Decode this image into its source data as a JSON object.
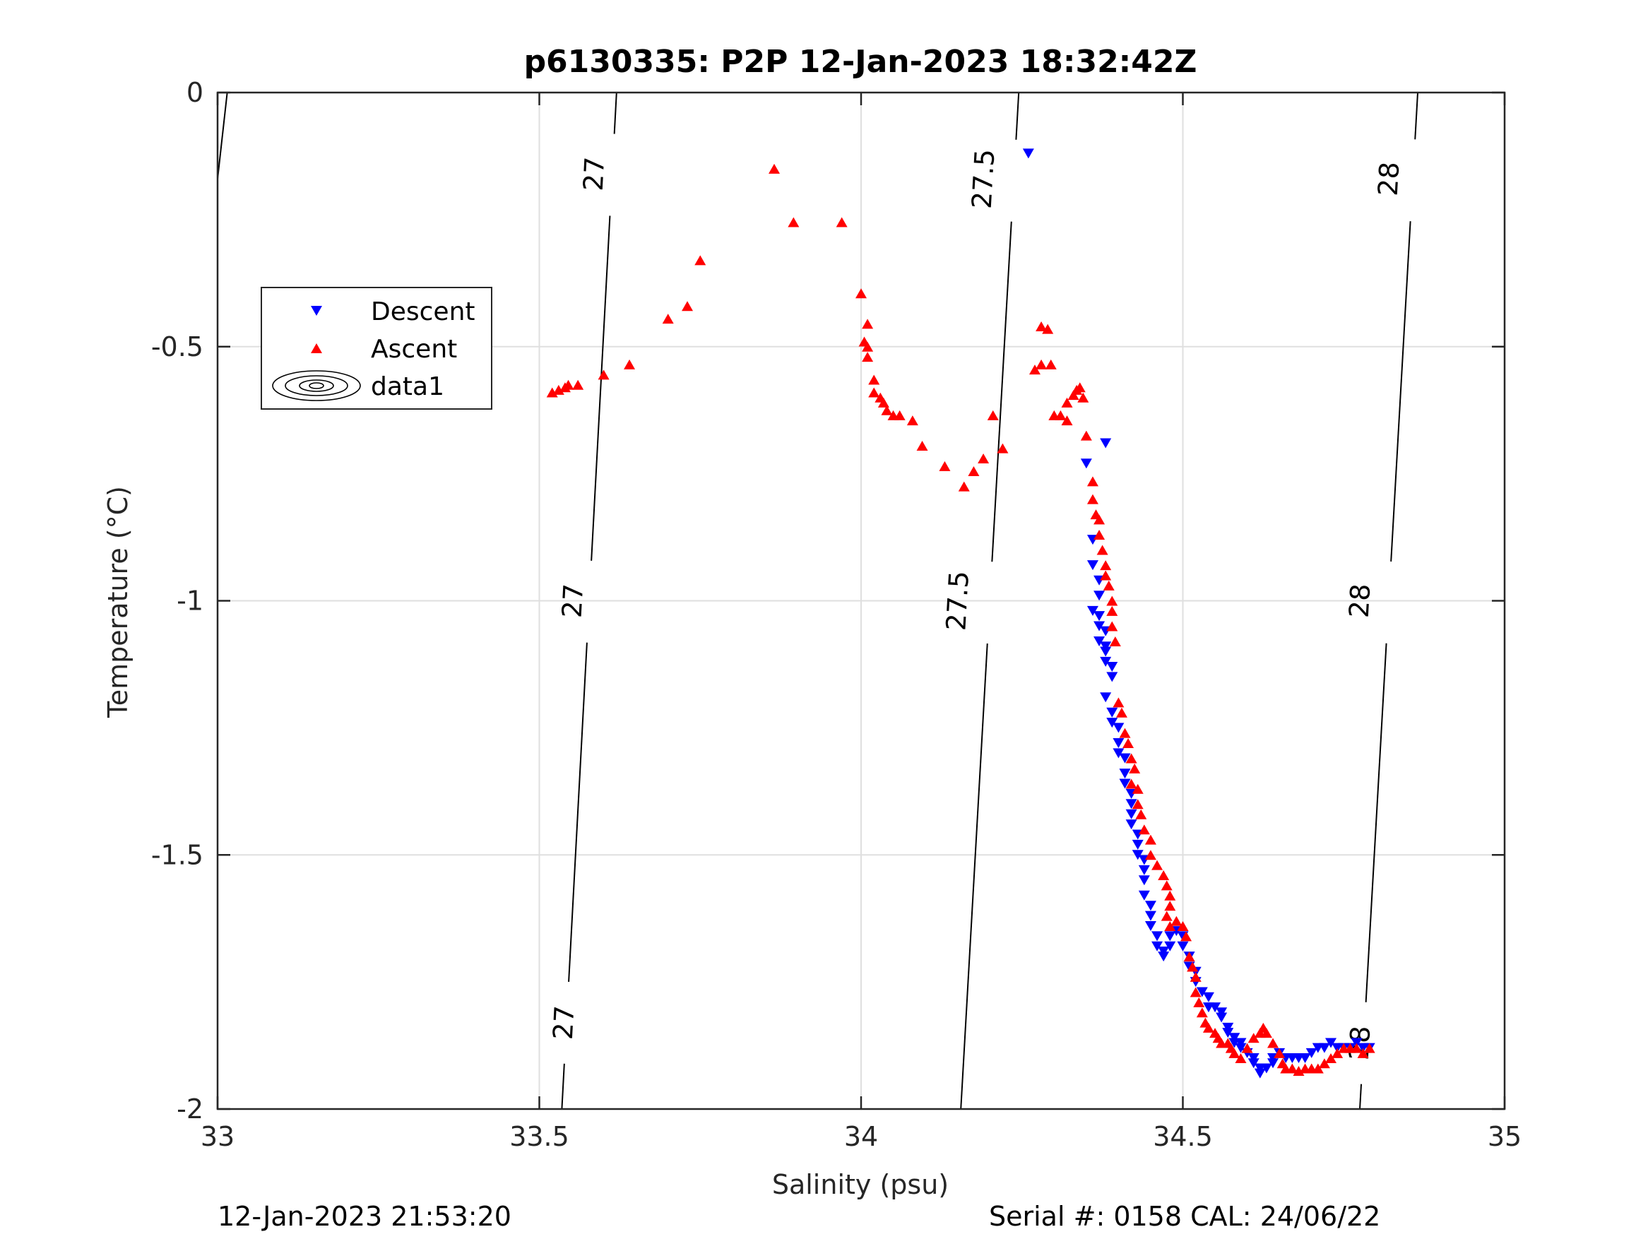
{
  "footer": {
    "left": "12-Jan-2023 21:53:20",
    "right": "Serial #: 0158  CAL: 24/06/22"
  },
  "chart_data": {
    "type": "scatter",
    "title": "p6130335: P2P 12-Jan-2023 18:32:42Z",
    "xlabel": "Salinity (psu)",
    "ylabel": "Temperature (°C)",
    "xlim": [
      33,
      35
    ],
    "ylim": [
      -2,
      0
    ],
    "xticks": [
      33,
      33.5,
      34,
      34.5,
      35
    ],
    "yticks": [
      0,
      -0.5,
      -1,
      -1.5,
      -2
    ],
    "xtick_labels": [
      "33",
      "33.5",
      "34",
      "34.5",
      "35"
    ],
    "ytick_labels": [
      "0",
      "-0.5",
      "-1",
      "-1.5",
      "-2"
    ],
    "grid": true,
    "legend_position": "upper-left",
    "legend": [
      {
        "label": "Descent",
        "marker": "triangle-down",
        "color": "#0000ff"
      },
      {
        "label": "Ascent",
        "marker": "triangle-up",
        "color": "#ff0000"
      },
      {
        "label": "data1",
        "marker": "contour",
        "color": "#000000"
      }
    ],
    "series": [
      {
        "name": "Descent",
        "color": "#0000ff",
        "marker": "triangle-down",
        "points": [
          [
            34.26,
            -0.12
          ],
          [
            34.38,
            -0.69
          ],
          [
            34.35,
            -0.73
          ],
          [
            34.36,
            -0.88
          ],
          [
            34.36,
            -0.93
          ],
          [
            34.37,
            -0.96
          ],
          [
            34.37,
            -0.99
          ],
          [
            34.36,
            -1.02
          ],
          [
            34.37,
            -1.03
          ],
          [
            34.37,
            -1.05
          ],
          [
            34.38,
            -1.06
          ],
          [
            34.37,
            -1.08
          ],
          [
            34.38,
            -1.09
          ],
          [
            34.38,
            -1.1
          ],
          [
            34.38,
            -1.12
          ],
          [
            34.39,
            -1.13
          ],
          [
            34.39,
            -1.15
          ],
          [
            34.38,
            -1.19
          ],
          [
            34.39,
            -1.22
          ],
          [
            34.39,
            -1.24
          ],
          [
            34.4,
            -1.25
          ],
          [
            34.4,
            -1.28
          ],
          [
            34.4,
            -1.3
          ],
          [
            34.41,
            -1.31
          ],
          [
            34.41,
            -1.34
          ],
          [
            34.41,
            -1.36
          ],
          [
            34.42,
            -1.38
          ],
          [
            34.42,
            -1.4
          ],
          [
            34.42,
            -1.42
          ],
          [
            34.42,
            -1.44
          ],
          [
            34.43,
            -1.46
          ],
          [
            34.43,
            -1.48
          ],
          [
            34.43,
            -1.5
          ],
          [
            34.44,
            -1.51
          ],
          [
            34.44,
            -1.53
          ],
          [
            34.44,
            -1.55
          ],
          [
            34.44,
            -1.58
          ],
          [
            34.45,
            -1.6
          ],
          [
            34.45,
            -1.62
          ],
          [
            34.45,
            -1.64
          ],
          [
            34.46,
            -1.66
          ],
          [
            34.46,
            -1.68
          ],
          [
            34.47,
            -1.69
          ],
          [
            34.47,
            -1.7
          ],
          [
            34.48,
            -1.68
          ],
          [
            34.48,
            -1.66
          ],
          [
            34.49,
            -1.65
          ],
          [
            34.5,
            -1.66
          ],
          [
            34.5,
            -1.68
          ],
          [
            34.51,
            -1.7
          ],
          [
            34.51,
            -1.72
          ],
          [
            34.52,
            -1.73
          ],
          [
            34.52,
            -1.75
          ],
          [
            34.53,
            -1.77
          ],
          [
            34.54,
            -1.78
          ],
          [
            34.54,
            -1.8
          ],
          [
            34.55,
            -1.8
          ],
          [
            34.56,
            -1.81
          ],
          [
            34.56,
            -1.82
          ],
          [
            34.57,
            -1.84
          ],
          [
            34.57,
            -1.85
          ],
          [
            34.58,
            -1.86
          ],
          [
            34.58,
            -1.87
          ],
          [
            34.59,
            -1.87
          ],
          [
            34.59,
            -1.88
          ],
          [
            34.6,
            -1.89
          ],
          [
            34.61,
            -1.9
          ],
          [
            34.61,
            -1.91
          ],
          [
            34.62,
            -1.92
          ],
          [
            34.62,
            -1.93
          ],
          [
            34.63,
            -1.92
          ],
          [
            34.64,
            -1.91
          ],
          [
            34.64,
            -1.9
          ],
          [
            34.65,
            -1.89
          ],
          [
            34.66,
            -1.9
          ],
          [
            34.67,
            -1.9
          ],
          [
            34.68,
            -1.9
          ],
          [
            34.69,
            -1.9
          ],
          [
            34.7,
            -1.89
          ],
          [
            34.71,
            -1.88
          ],
          [
            34.72,
            -1.88
          ],
          [
            34.73,
            -1.87
          ],
          [
            34.74,
            -1.88
          ],
          [
            34.75,
            -1.88
          ],
          [
            34.76,
            -1.88
          ],
          [
            34.77,
            -1.87
          ],
          [
            34.78,
            -1.88
          ],
          [
            34.79,
            -1.88
          ]
        ]
      },
      {
        "name": "Ascent",
        "color": "#ff0000",
        "marker": "triangle-up",
        "points": [
          [
            33.52,
            -0.59
          ],
          [
            33.53,
            -0.585
          ],
          [
            33.54,
            -0.58
          ],
          [
            33.545,
            -0.575
          ],
          [
            33.56,
            -0.575
          ],
          [
            33.6,
            -0.555
          ],
          [
            33.64,
            -0.535
          ],
          [
            33.7,
            -0.445
          ],
          [
            33.73,
            -0.42
          ],
          [
            33.75,
            -0.33
          ],
          [
            33.865,
            -0.15
          ],
          [
            33.895,
            -0.255
          ],
          [
            33.97,
            -0.255
          ],
          [
            34.0,
            -0.395
          ],
          [
            34.01,
            -0.455
          ],
          [
            34.005,
            -0.49
          ],
          [
            34.01,
            -0.5
          ],
          [
            34.01,
            -0.52
          ],
          [
            34.02,
            -0.565
          ],
          [
            34.02,
            -0.59
          ],
          [
            34.03,
            -0.6
          ],
          [
            34.035,
            -0.61
          ],
          [
            34.04,
            -0.625
          ],
          [
            34.05,
            -0.635
          ],
          [
            34.06,
            -0.635
          ],
          [
            34.08,
            -0.645
          ],
          [
            34.095,
            -0.695
          ],
          [
            34.13,
            -0.735
          ],
          [
            34.16,
            -0.775
          ],
          [
            34.175,
            -0.745
          ],
          [
            34.19,
            -0.72
          ],
          [
            34.205,
            -0.635
          ],
          [
            34.22,
            -0.7
          ],
          [
            34.27,
            -0.545
          ],
          [
            34.28,
            -0.46
          ],
          [
            34.29,
            -0.465
          ],
          [
            34.28,
            -0.535
          ],
          [
            34.295,
            -0.535
          ],
          [
            34.3,
            -0.635
          ],
          [
            34.31,
            -0.635
          ],
          [
            34.32,
            -0.645
          ],
          [
            34.32,
            -0.61
          ],
          [
            34.33,
            -0.595
          ],
          [
            34.335,
            -0.585
          ],
          [
            34.34,
            -0.58
          ],
          [
            34.345,
            -0.6
          ],
          [
            34.35,
            -0.675
          ],
          [
            34.36,
            -0.765
          ],
          [
            34.36,
            -0.8
          ],
          [
            34.365,
            -0.83
          ],
          [
            34.37,
            -0.84
          ],
          [
            34.37,
            -0.87
          ],
          [
            34.375,
            -0.9
          ],
          [
            34.38,
            -0.93
          ],
          [
            34.38,
            -0.95
          ],
          [
            34.385,
            -0.97
          ],
          [
            34.39,
            -1.0
          ],
          [
            34.39,
            -1.02
          ],
          [
            34.39,
            -1.05
          ],
          [
            34.395,
            -1.08
          ],
          [
            34.4,
            -1.2
          ],
          [
            34.405,
            -1.22
          ],
          [
            34.41,
            -1.26
          ],
          [
            34.415,
            -1.28
          ],
          [
            34.42,
            -1.31
          ],
          [
            34.425,
            -1.33
          ],
          [
            34.42,
            -1.36
          ],
          [
            34.43,
            -1.37
          ],
          [
            34.43,
            -1.4
          ],
          [
            34.435,
            -1.42
          ],
          [
            34.44,
            -1.45
          ],
          [
            34.45,
            -1.47
          ],
          [
            34.45,
            -1.5
          ],
          [
            34.46,
            -1.52
          ],
          [
            34.47,
            -1.54
          ],
          [
            34.475,
            -1.56
          ],
          [
            34.48,
            -1.58
          ],
          [
            34.48,
            -1.6
          ],
          [
            34.475,
            -1.62
          ],
          [
            34.48,
            -1.64
          ],
          [
            34.49,
            -1.63
          ],
          [
            34.5,
            -1.64
          ],
          [
            34.505,
            -1.66
          ],
          [
            34.51,
            -1.7
          ],
          [
            34.515,
            -1.72
          ],
          [
            34.52,
            -1.74
          ],
          [
            34.52,
            -1.77
          ],
          [
            34.525,
            -1.79
          ],
          [
            34.53,
            -1.81
          ],
          [
            34.535,
            -1.83
          ],
          [
            34.54,
            -1.84
          ],
          [
            34.55,
            -1.85
          ],
          [
            34.555,
            -1.86
          ],
          [
            34.56,
            -1.87
          ],
          [
            34.57,
            -1.87
          ],
          [
            34.575,
            -1.88
          ],
          [
            34.58,
            -1.89
          ],
          [
            34.59,
            -1.9
          ],
          [
            34.6,
            -1.88
          ],
          [
            34.61,
            -1.86
          ],
          [
            34.62,
            -1.85
          ],
          [
            34.625,
            -1.84
          ],
          [
            34.63,
            -1.85
          ],
          [
            34.64,
            -1.87
          ],
          [
            34.65,
            -1.89
          ],
          [
            34.655,
            -1.91
          ],
          [
            34.66,
            -1.92
          ],
          [
            34.67,
            -1.92
          ],
          [
            34.68,
            -1.925
          ],
          [
            34.69,
            -1.92
          ],
          [
            34.7,
            -1.92
          ],
          [
            34.71,
            -1.92
          ],
          [
            34.72,
            -1.91
          ],
          [
            34.73,
            -1.9
          ],
          [
            34.74,
            -1.89
          ],
          [
            34.75,
            -1.88
          ],
          [
            34.76,
            -1.88
          ],
          [
            34.77,
            -1.88
          ],
          [
            34.78,
            -1.89
          ],
          [
            34.79,
            -1.88
          ]
        ]
      }
    ],
    "contours": [
      {
        "label": "27",
        "color": "#000000",
        "line": [
          [
            33.535,
            -2.0
          ],
          [
            33.62,
            0.0
          ]
        ],
        "labels": [
          [
            33.552,
            -1.0
          ],
          [
            33.538,
            -1.83
          ],
          [
            33.585,
            -0.16
          ]
        ]
      },
      {
        "label": "27.5",
        "color": "#000000",
        "line": [
          [
            34.155,
            -2.0
          ],
          [
            34.245,
            0.0
          ]
        ],
        "labels": [
          [
            34.19,
            -0.17
          ],
          [
            34.15,
            -1.0
          ]
        ]
      },
      {
        "label": "28",
        "color": "#000000",
        "line": [
          [
            34.775,
            -2.0
          ],
          [
            34.865,
            0.0
          ]
        ],
        "labels": [
          [
            34.82,
            -0.17
          ],
          [
            34.775,
            -1.0
          ],
          [
            34.775,
            -1.87
          ]
        ]
      },
      {
        "label": "",
        "color": "#000000",
        "line": [
          [
            33.0,
            -0.17
          ],
          [
            33.015,
            0.0
          ]
        ],
        "labels": []
      }
    ]
  }
}
